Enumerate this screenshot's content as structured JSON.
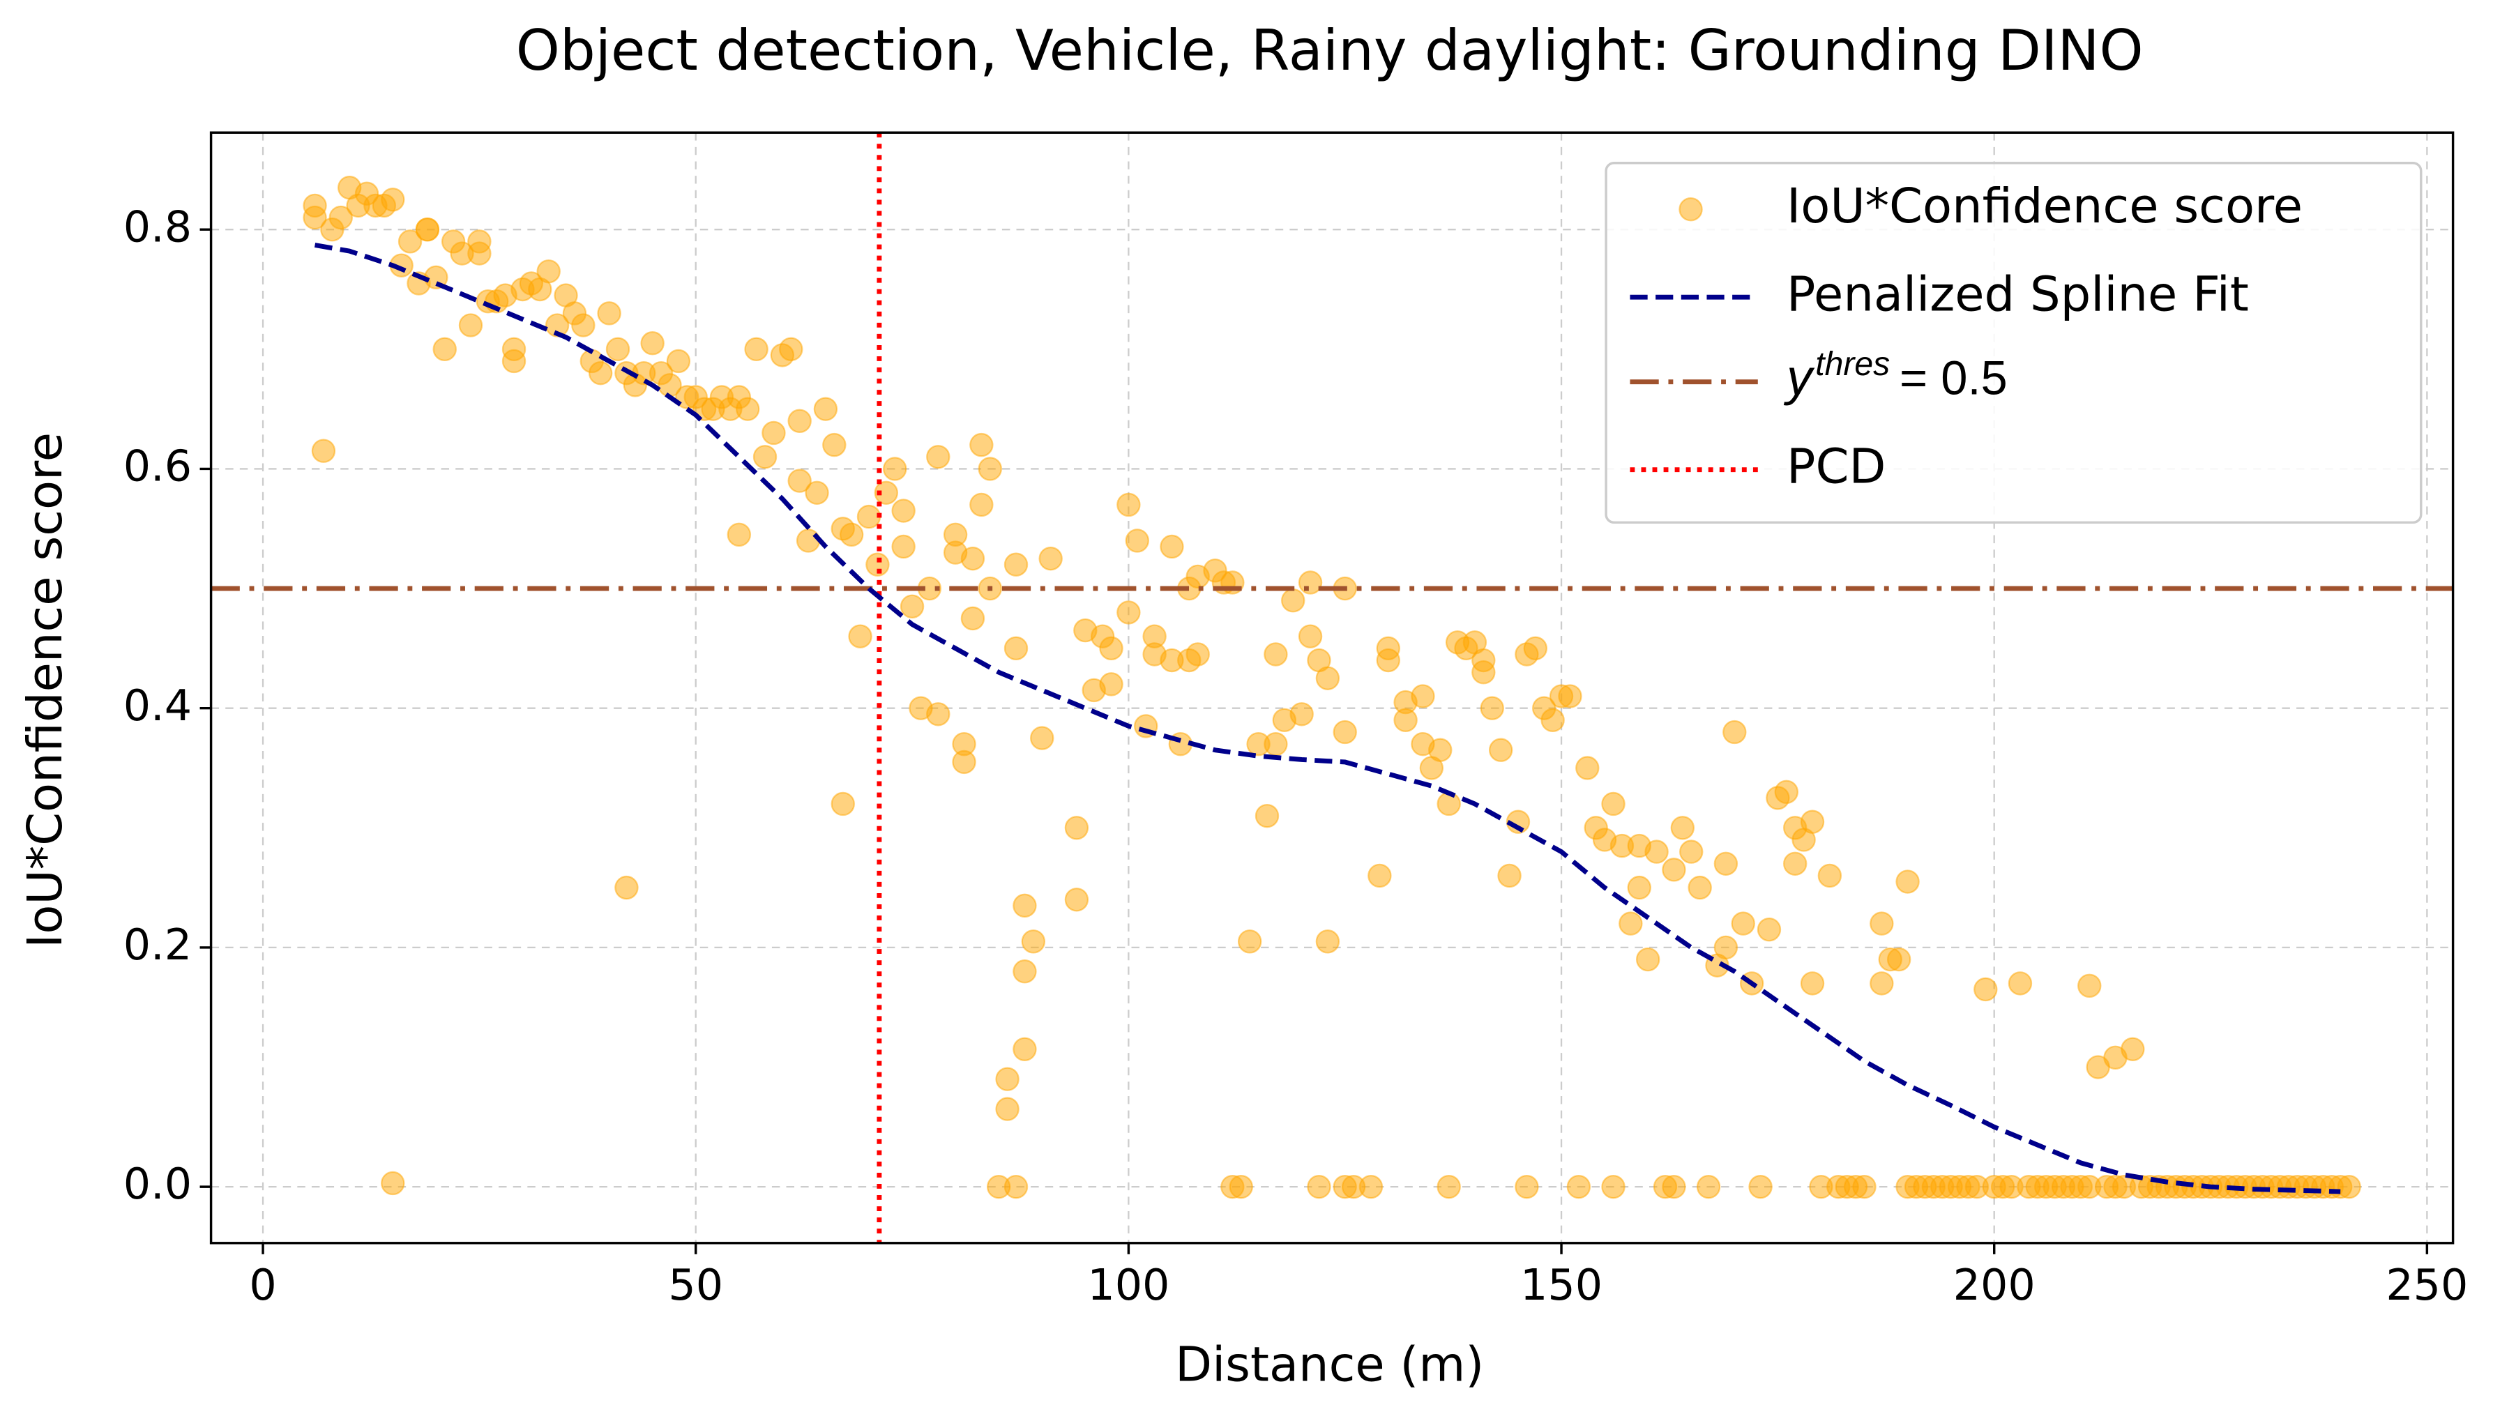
{
  "chart_data": {
    "type": "scatter",
    "title": "Object detection, Vehicle, Rainy daylight: Grounding DINO",
    "xlabel": "Distance (m)",
    "ylabel": "IoU*Confidence score",
    "xlim": [
      -6,
      253
    ],
    "ylim": [
      -0.047,
      0.881
    ],
    "xticks": [
      0,
      50,
      100,
      150,
      200,
      250
    ],
    "yticks": [
      {
        "value": 0,
        "label": "0.0"
      },
      0.2,
      0.4,
      0.6,
      0.8
    ],
    "grid": true,
    "legend": "upper right",
    "scatter": {
      "name": "IoU*Confidence score",
      "color": "#ffa500",
      "x": [
        6,
        6,
        7,
        8,
        9,
        10,
        11,
        12,
        13,
        14,
        15,
        15,
        16,
        17,
        18,
        19,
        19,
        20,
        21,
        22,
        23,
        24,
        25,
        25,
        26,
        27,
        28,
        29,
        29,
        30,
        31,
        32,
        33,
        34,
        35,
        36,
        37,
        38,
        39,
        40,
        41,
        42,
        42,
        43,
        44,
        45,
        46,
        47,
        48,
        49,
        50,
        51,
        52,
        53,
        54,
        55,
        55,
        56,
        57,
        58,
        59,
        60,
        61,
        62,
        62,
        63,
        64,
        65,
        66,
        67,
        67,
        68,
        69,
        70,
        71,
        72,
        73,
        74,
        74,
        75,
        76,
        77,
        78,
        78,
        80,
        80,
        81,
        81,
        82,
        82,
        83,
        83,
        84,
        84,
        85,
        86,
        86,
        87,
        87,
        87,
        88,
        88,
        88,
        89,
        90,
        91,
        94,
        94,
        95,
        96,
        97,
        98,
        98,
        100,
        100,
        101,
        102,
        103,
        103,
        105,
        105,
        106,
        107,
        107,
        108,
        108,
        110,
        111,
        112,
        112,
        113,
        114,
        115,
        116,
        117,
        117,
        118,
        119,
        120,
        121,
        121,
        122,
        122,
        123,
        123,
        125,
        125,
        125,
        126,
        128,
        129,
        130,
        130,
        132,
        132,
        134,
        134,
        135,
        136,
        137,
        137,
        138,
        139,
        140,
        141,
        141,
        142,
        143,
        144,
        145,
        146,
        146,
        147,
        148,
        149,
        150,
        151,
        152,
        153,
        154,
        155,
        156,
        156,
        157,
        158,
        159,
        159,
        160,
        161,
        162,
        163,
        163,
        164,
        165,
        166,
        167,
        168,
        169,
        169,
        170,
        171,
        172,
        173,
        174,
        175,
        176,
        177,
        177,
        178,
        179,
        179,
        180,
        181,
        182,
        183,
        184,
        185,
        187,
        187,
        188,
        189,
        190,
        190,
        191,
        192,
        193,
        194,
        195,
        196,
        197,
        198,
        199,
        200,
        201,
        202,
        203,
        204,
        205,
        206,
        207,
        208,
        209,
        210,
        211,
        211,
        212,
        213,
        214,
        214,
        215,
        216,
        217,
        218,
        219,
        220,
        221,
        222,
        223,
        224,
        225,
        226,
        227,
        228,
        229,
        230,
        231,
        232,
        233,
        234,
        235,
        236,
        237,
        238,
        239,
        240,
        241
      ],
      "y": [
        0.82,
        0.81,
        0.615,
        0.8,
        0.81,
        0.835,
        0.82,
        0.83,
        0.82,
        0.82,
        0.825,
        0.003,
        0.77,
        0.79,
        0.755,
        0.8,
        0.8,
        0.76,
        0.7,
        0.79,
        0.78,
        0.72,
        0.79,
        0.78,
        0.74,
        0.74,
        0.745,
        0.69,
        0.7,
        0.75,
        0.755,
        0.75,
        0.765,
        0.72,
        0.745,
        0.73,
        0.72,
        0.69,
        0.68,
        0.73,
        0.7,
        0.25,
        0.68,
        0.67,
        0.68,
        0.705,
        0.68,
        0.67,
        0.69,
        0.66,
        0.66,
        0.65,
        0.65,
        0.66,
        0.65,
        0.66,
        0.545,
        0.65,
        0.7,
        0.61,
        0.63,
        0.695,
        0.7,
        0.64,
        0.59,
        0.54,
        0.58,
        0.65,
        0.62,
        0.55,
        0.32,
        0.545,
        0.46,
        0.56,
        0.52,
        0.58,
        0.6,
        0.565,
        0.535,
        0.485,
        0.4,
        0.5,
        0.395,
        0.61,
        0.53,
        0.545,
        0.37,
        0.355,
        0.475,
        0.525,
        0.57,
        0.62,
        0.6,
        0.5,
        0,
        0.065,
        0.09,
        0,
        0.45,
        0.52,
        0.235,
        0.115,
        0.18,
        0.205,
        0.375,
        0.525,
        0.24,
        0.3,
        0.465,
        0.415,
        0.46,
        0.42,
        0.45,
        0.48,
        0.57,
        0.54,
        0.385,
        0.46,
        0.445,
        0.535,
        0.44,
        0.37,
        0.44,
        0.5,
        0.445,
        0.51,
        0.515,
        0.505,
        0.505,
        0,
        0,
        0.205,
        0.37,
        0.31,
        0.37,
        0.445,
        0.39,
        0.49,
        0.395,
        0.505,
        0.46,
        0.44,
        0,
        0.205,
        0.425,
        0.38,
        0.5,
        0,
        0,
        0,
        0.26,
        0.44,
        0.45,
        0.405,
        0.39,
        0.37,
        0.41,
        0.35,
        0.365,
        0,
        0.32,
        0.455,
        0.45,
        0.455,
        0.44,
        0.43,
        0.4,
        0.365,
        0.26,
        0.305,
        0,
        0.445,
        0.45,
        0.4,
        0.39,
        0.41,
        0.41,
        0,
        0.35,
        0.3,
        0.29,
        0.32,
        0,
        0.285,
        0.22,
        0.285,
        0.25,
        0.19,
        0.28,
        0,
        0,
        0.265,
        0.3,
        0.28,
        0.25,
        0,
        0.185,
        0.2,
        0.27,
        0.38,
        0.22,
        0.17,
        0,
        0.215,
        0.325,
        0.33,
        0.3,
        0.27,
        0.29,
        0.17,
        0.305,
        0,
        0.26,
        0,
        0,
        0,
        0,
        0.17,
        0.22,
        0.19,
        0.19,
        0.255,
        0,
        0,
        0,
        0,
        0,
        0,
        0,
        0,
        0,
        0.165,
        0,
        0,
        0,
        0.17,
        0,
        0,
        0,
        0,
        0,
        0,
        0,
        0.168,
        0,
        0.1,
        0,
        0.108,
        0,
        0,
        0.115,
        0,
        0,
        0,
        0,
        0,
        0,
        0,
        0,
        0,
        0,
        0,
        0,
        0,
        0,
        0,
        0,
        0,
        0,
        0,
        0,
        0,
        0,
        0,
        0,
        0
      ]
    },
    "spline": {
      "name": "Penalized Spline Fit",
      "color": "#00008b",
      "x": [
        6,
        10,
        15,
        20,
        25,
        30,
        35,
        40,
        45,
        50,
        55,
        60,
        65,
        70,
        75,
        80,
        85,
        90,
        95,
        100,
        105,
        110,
        115,
        120,
        125,
        130,
        135,
        140,
        145,
        150,
        155,
        160,
        165,
        170,
        175,
        180,
        185,
        190,
        195,
        200,
        205,
        210,
        215,
        220,
        225,
        230,
        235,
        240
      ],
      "y": [
        0.787,
        0.782,
        0.77,
        0.755,
        0.74,
        0.725,
        0.71,
        0.69,
        0.67,
        0.645,
        0.61,
        0.575,
        0.535,
        0.5,
        0.47,
        0.45,
        0.43,
        0.415,
        0.4,
        0.385,
        0.375,
        0.365,
        0.36,
        0.357,
        0.355,
        0.345,
        0.335,
        0.32,
        0.3,
        0.28,
        0.25,
        0.225,
        0.2,
        0.18,
        0.155,
        0.13,
        0.105,
        0.085,
        0.068,
        0.05,
        0.035,
        0.02,
        0.01,
        0.004,
        0,
        -0.002,
        -0.003,
        -0.004
      ]
    },
    "threshold": {
      "value": 0.5,
      "color": "#a0522d",
      "label_base": "y",
      "label_sup": "thres",
      "label_suffix": "= 0.5"
    },
    "pcd": {
      "name": "PCD",
      "value": 71.2,
      "color": "#ff0000"
    }
  }
}
